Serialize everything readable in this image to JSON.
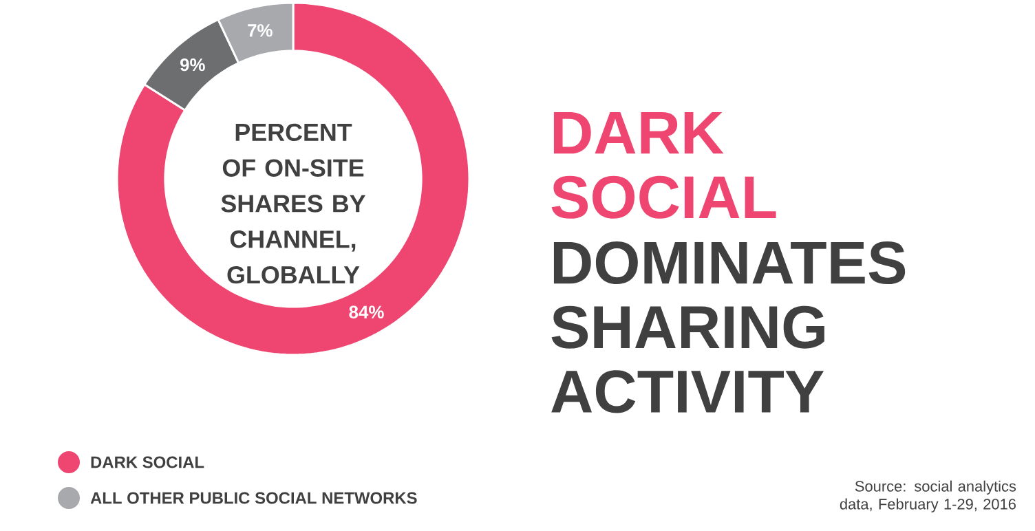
{
  "chart_data": {
    "type": "donut",
    "title": "DARK SOCIAL",
    "subtitle": "DOMINATES SHARING ACTIVITY",
    "categories": [
      "DARK SOCIAL",
      null,
      "ALL OTHER PUBLIC SOCIAL NETWORKS"
    ],
    "values": [
      84,
      9,
      7
    ],
    "colors": [
      "#ee4670",
      "#6d6e70",
      "#a7a9ac"
    ],
    "value_labels": [
      "84%",
      "9%",
      "7%"
    ],
    "legend": "bottom left",
    "annotations": [
      "PERCENT OF ON-SITE SHARES BY CHANNEL, GLOBALLY",
      "Source: social analytics data, February 1-29, 2016"
    ]
  }
}
